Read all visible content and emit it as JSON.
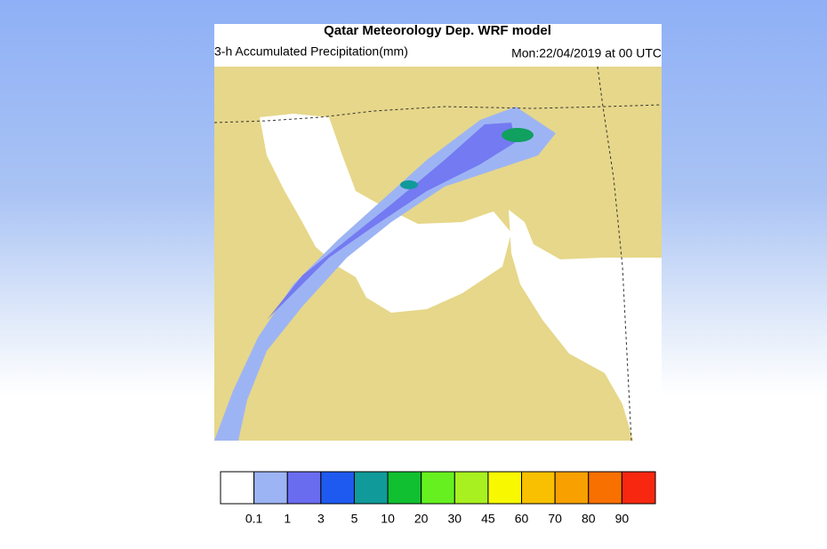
{
  "header": {
    "title": "Qatar Meteorology Dep. WRF model",
    "subtitle": "3-h Accumulated Precipitation(mm)",
    "valid_time": "Mon:22/04/2019 at 00 UTC"
  },
  "legend": {
    "colors": [
      "#ffffff",
      "#9db4f4",
      "#6a6cf0",
      "#1f5af0",
      "#109a9a",
      "#10c030",
      "#66f020",
      "#a8f020",
      "#f8f800",
      "#f8c000",
      "#f8a000",
      "#f87000",
      "#f82810"
    ],
    "labels": [
      0.1,
      1,
      3,
      5,
      10,
      20,
      30,
      45,
      60,
      70,
      80,
      90
    ]
  }
}
